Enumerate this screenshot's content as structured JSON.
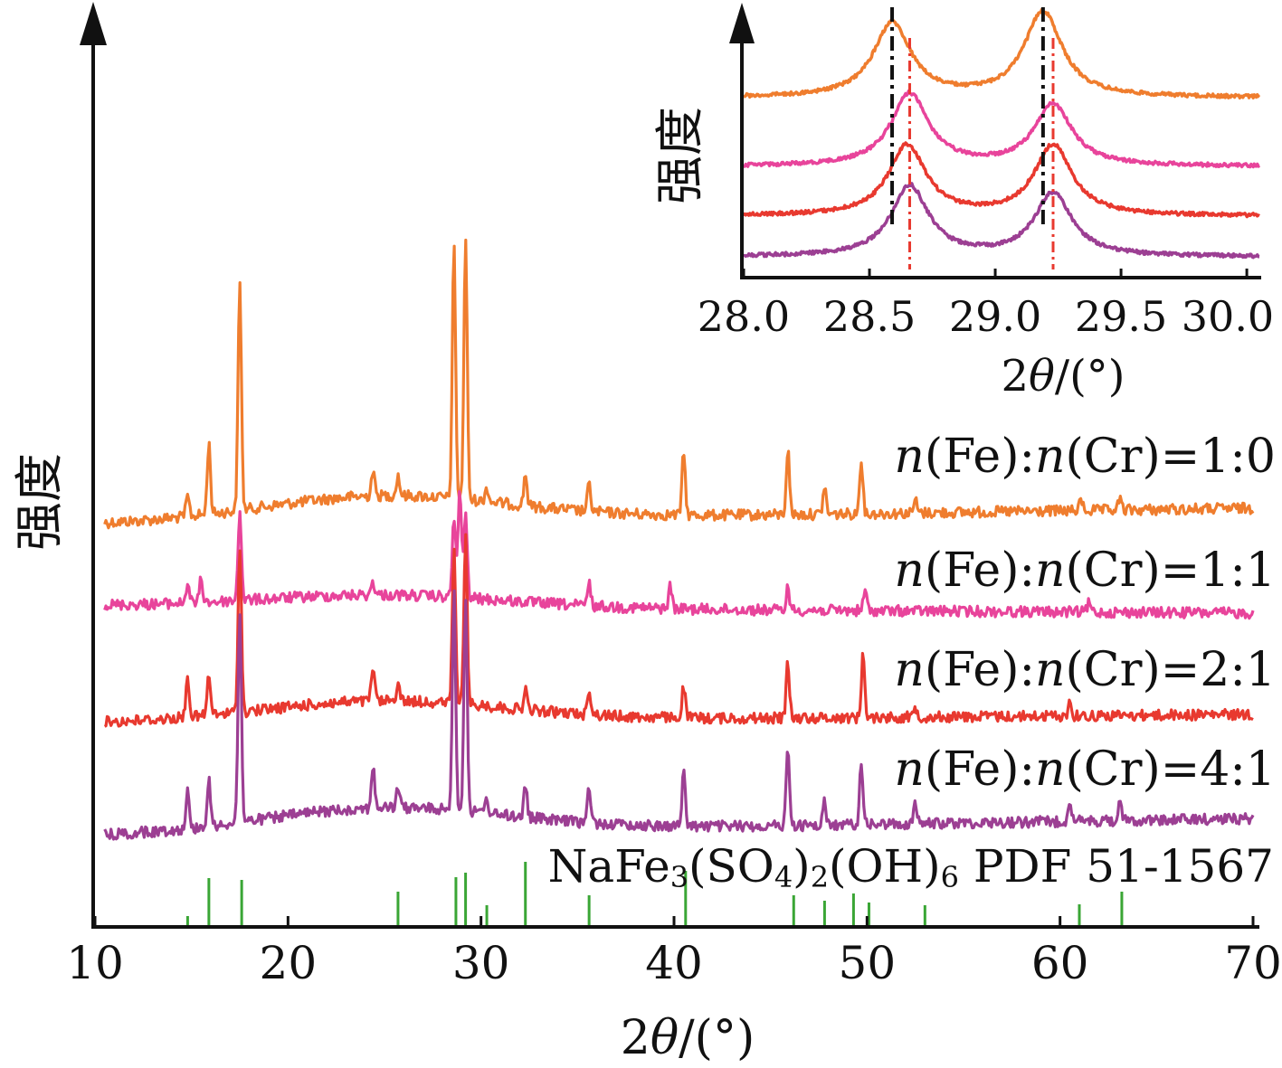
{
  "chart_data": [
    {
      "type": "line",
      "panel": "main",
      "xlabel": "2θ/(°)",
      "xlabel_prefix": "2",
      "xlabel_theta": "θ",
      "xlabel_suffix": "/(°)",
      "ylabel": "强度",
      "xlim": [
        10,
        70
      ],
      "x_ticks": [
        "10",
        "20",
        "30",
        "40",
        "50",
        "60",
        "70"
      ],
      "y_ticks": false,
      "grid": false,
      "legend": "labels placed at right above each trace",
      "series": [
        {
          "name": "n(Fe):n(Cr)=1:0",
          "label_parts": [
            "n",
            "(Fe):",
            "n",
            "(Cr)=1:0"
          ],
          "color": "#ef7d2e",
          "baseline_start": 580,
          "baseline_hump": 548,
          "baseline_end": 562,
          "peaks": [
            [
              14.8,
              22
            ],
            [
              15.9,
              78
            ],
            [
              17.5,
              252
            ],
            [
              24.4,
              28
            ],
            [
              25.7,
              22
            ],
            [
              28.6,
              280
            ],
            [
              29.2,
              290
            ],
            [
              30.3,
              16
            ],
            [
              32.3,
              35
            ],
            [
              35.6,
              30
            ],
            [
              40.5,
              70
            ],
            [
              45.9,
              72
            ],
            [
              47.8,
              30
            ],
            [
              49.7,
              62
            ],
            [
              52.5,
              14
            ],
            [
              61.1,
              12
            ],
            [
              63.1,
              12
            ]
          ]
        },
        {
          "name": "n(Fe):n(Cr)=1:1",
          "label_parts": [
            "n",
            "(Fe):",
            "n",
            "(Cr)=1:1"
          ],
          "color": "#e8449b",
          "baseline_start": 670,
          "baseline_hump": 658,
          "baseline_end": 678,
          "peaks": [
            [
              14.8,
              22
            ],
            [
              15.5,
              25
            ],
            [
              17.5,
              100
            ],
            [
              24.4,
              15
            ],
            [
              28.6,
              90
            ],
            [
              28.9,
              120
            ],
            [
              29.2,
              95
            ],
            [
              35.6,
              25
            ],
            [
              39.8,
              25
            ],
            [
              45.9,
              25
            ],
            [
              49.9,
              22
            ],
            [
              61.5,
              10
            ]
          ]
        },
        {
          "name": "n(Fe):n(Cr)=2:1",
          "label_parts": [
            "n",
            "(Fe):",
            "n",
            "(Cr)=2:1"
          ],
          "color": "#e8392f",
          "baseline_start": 800,
          "baseline_hump": 775,
          "baseline_end": 790,
          "peaks": [
            [
              14.8,
              45
            ],
            [
              15.9,
              45
            ],
            [
              17.5,
              185
            ],
            [
              24.4,
              38
            ],
            [
              25.7,
              20
            ],
            [
              28.6,
              170
            ],
            [
              29.2,
              185
            ],
            [
              32.3,
              22
            ],
            [
              35.6,
              30
            ],
            [
              40.5,
              35
            ],
            [
              45.9,
              62
            ],
            [
              49.8,
              70
            ],
            [
              52.5,
              12
            ],
            [
              60.5,
              15
            ]
          ]
        },
        {
          "name": "n(Fe):n(Cr)=4:1",
          "label_parts": [
            "n",
            "(Fe):",
            "n",
            "(Cr)=4:1"
          ],
          "color": "#9c3f93",
          "baseline_start": 925,
          "baseline_hump": 893,
          "baseline_end": 905,
          "peaks": [
            [
              14.8,
              40
            ],
            [
              15.9,
              50
            ],
            [
              17.5,
              235
            ],
            [
              24.4,
              45
            ],
            [
              25.7,
              22
            ],
            [
              28.6,
              245
            ],
            [
              29.2,
              240
            ],
            [
              30.3,
              16
            ],
            [
              32.3,
              35
            ],
            [
              35.6,
              40
            ],
            [
              40.5,
              60
            ],
            [
              45.9,
              85
            ],
            [
              47.8,
              25
            ],
            [
              49.7,
              72
            ],
            [
              52.5,
              22
            ],
            [
              60.5,
              25
            ],
            [
              63.1,
              18
            ]
          ]
        }
      ],
      "reference": {
        "label": "NaFe3(SO4)2(OH)6 PDF 51-1567",
        "label_parts": [
          "NaFe",
          "3",
          "(SO",
          "4",
          ")",
          "2",
          "(OH)",
          "6",
          " PDF 51-1567"
        ],
        "color": "#3aa635",
        "sticks": [
          [
            14.8,
            10
          ],
          [
            15.9,
            52
          ],
          [
            17.6,
            50
          ],
          [
            25.7,
            37
          ],
          [
            28.7,
            53
          ],
          [
            29.2,
            58
          ],
          [
            30.3,
            22
          ],
          [
            32.3,
            70
          ],
          [
            35.6,
            33
          ],
          [
            40.6,
            60
          ],
          [
            46.2,
            33
          ],
          [
            47.8,
            27
          ],
          [
            49.3,
            35
          ],
          [
            50.1,
            25
          ],
          [
            53.0,
            22
          ],
          [
            61.0,
            23
          ],
          [
            63.2,
            37
          ]
        ]
      }
    },
    {
      "type": "line",
      "panel": "inset",
      "xlabel": "2θ/(°)",
      "xlabel_prefix": "2",
      "xlabel_theta": "θ",
      "xlabel_suffix": "/(°)",
      "ylabel": "强度",
      "xlim": [
        28.0,
        30.05
      ],
      "x_ticks": [
        "28.0",
        "28.5",
        "29.0",
        "29.5",
        "30.0"
      ],
      "x_tick_values": [
        28.0,
        28.5,
        29.0,
        29.5,
        30.0
      ],
      "reference_lines": [
        {
          "x": 28.59,
          "color": "#111111",
          "style": "dash-dot"
        },
        {
          "x": 29.19,
          "color": "#111111",
          "style": "dash-dot"
        },
        {
          "x": 28.66,
          "color": "#e8392f",
          "style": "dash-dot"
        },
        {
          "x": 29.23,
          "color": "#e8392f",
          "style": "dash-dot"
        }
      ],
      "series": [
        {
          "name": "n(Fe):n(Cr)=1:0",
          "color": "#ef7d2e",
          "peak_x": [
            28.59,
            29.19
          ],
          "heights": [
            82,
            95
          ],
          "base": 108
        },
        {
          "name": "n(Fe):n(Cr)=1:1",
          "color": "#e8449b",
          "peak_x": [
            28.66,
            29.23
          ],
          "heights": [
            80,
            68
          ],
          "base": 184
        },
        {
          "name": "n(Fe):n(Cr)=2:1",
          "color": "#e8392f",
          "peak_x": [
            28.65,
            29.23
          ],
          "heights": [
            78,
            78
          ],
          "base": 239
        },
        {
          "name": "n(Fe):n(Cr)=4:1",
          "color": "#9c3f93",
          "peak_x": [
            28.66,
            29.23
          ],
          "heights": [
            78,
            70
          ],
          "base": 284
        }
      ]
    }
  ]
}
